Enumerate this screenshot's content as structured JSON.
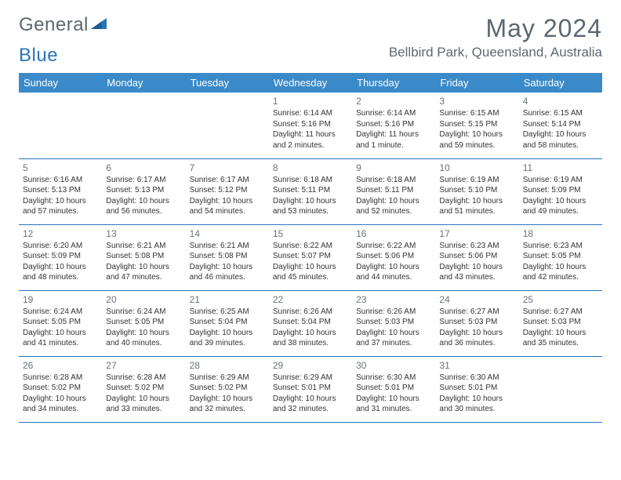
{
  "brand": {
    "part1": "General",
    "part2": "Blue"
  },
  "title": "May 2024",
  "location": "Bellbird Park, Queensland, Australia",
  "colors": {
    "header_bg": "#3a8ac9",
    "header_text": "#ffffff",
    "border": "#2975b9",
    "body_text": "#333333",
    "muted": "#5d6770"
  },
  "weekdays": [
    "Sunday",
    "Monday",
    "Tuesday",
    "Wednesday",
    "Thursday",
    "Friday",
    "Saturday"
  ],
  "weeks": [
    [
      null,
      null,
      null,
      {
        "n": "1",
        "sr": "6:14 AM",
        "ss": "5:16 PM",
        "dl": "11 hours and 2 minutes."
      },
      {
        "n": "2",
        "sr": "6:14 AM",
        "ss": "5:16 PM",
        "dl": "11 hours and 1 minute."
      },
      {
        "n": "3",
        "sr": "6:15 AM",
        "ss": "5:15 PM",
        "dl": "10 hours and 59 minutes."
      },
      {
        "n": "4",
        "sr": "6:15 AM",
        "ss": "5:14 PM",
        "dl": "10 hours and 58 minutes."
      }
    ],
    [
      {
        "n": "5",
        "sr": "6:16 AM",
        "ss": "5:13 PM",
        "dl": "10 hours and 57 minutes."
      },
      {
        "n": "6",
        "sr": "6:17 AM",
        "ss": "5:13 PM",
        "dl": "10 hours and 56 minutes."
      },
      {
        "n": "7",
        "sr": "6:17 AM",
        "ss": "5:12 PM",
        "dl": "10 hours and 54 minutes."
      },
      {
        "n": "8",
        "sr": "6:18 AM",
        "ss": "5:11 PM",
        "dl": "10 hours and 53 minutes."
      },
      {
        "n": "9",
        "sr": "6:18 AM",
        "ss": "5:11 PM",
        "dl": "10 hours and 52 minutes."
      },
      {
        "n": "10",
        "sr": "6:19 AM",
        "ss": "5:10 PM",
        "dl": "10 hours and 51 minutes."
      },
      {
        "n": "11",
        "sr": "6:19 AM",
        "ss": "5:09 PM",
        "dl": "10 hours and 49 minutes."
      }
    ],
    [
      {
        "n": "12",
        "sr": "6:20 AM",
        "ss": "5:09 PM",
        "dl": "10 hours and 48 minutes."
      },
      {
        "n": "13",
        "sr": "6:21 AM",
        "ss": "5:08 PM",
        "dl": "10 hours and 47 minutes."
      },
      {
        "n": "14",
        "sr": "6:21 AM",
        "ss": "5:08 PM",
        "dl": "10 hours and 46 minutes."
      },
      {
        "n": "15",
        "sr": "6:22 AM",
        "ss": "5:07 PM",
        "dl": "10 hours and 45 minutes."
      },
      {
        "n": "16",
        "sr": "6:22 AM",
        "ss": "5:06 PM",
        "dl": "10 hours and 44 minutes."
      },
      {
        "n": "17",
        "sr": "6:23 AM",
        "ss": "5:06 PM",
        "dl": "10 hours and 43 minutes."
      },
      {
        "n": "18",
        "sr": "6:23 AM",
        "ss": "5:05 PM",
        "dl": "10 hours and 42 minutes."
      }
    ],
    [
      {
        "n": "19",
        "sr": "6:24 AM",
        "ss": "5:05 PM",
        "dl": "10 hours and 41 minutes."
      },
      {
        "n": "20",
        "sr": "6:24 AM",
        "ss": "5:05 PM",
        "dl": "10 hours and 40 minutes."
      },
      {
        "n": "21",
        "sr": "6:25 AM",
        "ss": "5:04 PM",
        "dl": "10 hours and 39 minutes."
      },
      {
        "n": "22",
        "sr": "6:26 AM",
        "ss": "5:04 PM",
        "dl": "10 hours and 38 minutes."
      },
      {
        "n": "23",
        "sr": "6:26 AM",
        "ss": "5:03 PM",
        "dl": "10 hours and 37 minutes."
      },
      {
        "n": "24",
        "sr": "6:27 AM",
        "ss": "5:03 PM",
        "dl": "10 hours and 36 minutes."
      },
      {
        "n": "25",
        "sr": "6:27 AM",
        "ss": "5:03 PM",
        "dl": "10 hours and 35 minutes."
      }
    ],
    [
      {
        "n": "26",
        "sr": "6:28 AM",
        "ss": "5:02 PM",
        "dl": "10 hours and 34 minutes."
      },
      {
        "n": "27",
        "sr": "6:28 AM",
        "ss": "5:02 PM",
        "dl": "10 hours and 33 minutes."
      },
      {
        "n": "28",
        "sr": "6:29 AM",
        "ss": "5:02 PM",
        "dl": "10 hours and 32 minutes."
      },
      {
        "n": "29",
        "sr": "6:29 AM",
        "ss": "5:01 PM",
        "dl": "10 hours and 32 minutes."
      },
      {
        "n": "30",
        "sr": "6:30 AM",
        "ss": "5:01 PM",
        "dl": "10 hours and 31 minutes."
      },
      {
        "n": "31",
        "sr": "6:30 AM",
        "ss": "5:01 PM",
        "dl": "10 hours and 30 minutes."
      },
      null
    ]
  ],
  "labels": {
    "sunrise": "Sunrise:",
    "sunset": "Sunset:",
    "daylight": "Daylight:"
  }
}
